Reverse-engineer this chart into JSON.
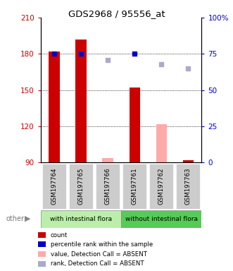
{
  "title": "GDS2968 / 95556_at",
  "samples": [
    "GSM197764",
    "GSM197765",
    "GSM197766",
    "GSM197761",
    "GSM197762",
    "GSM197763"
  ],
  "group1_label": "with intestinal flora",
  "group2_label": "without intestinal flora",
  "group1_color": "#bbeeaa",
  "group2_color": "#55cc55",
  "sample_box_color": "#cccccc",
  "ylim_left": [
    90,
    210
  ],
  "ylim_right": [
    0,
    100
  ],
  "yticks_left": [
    90,
    120,
    150,
    180,
    210
  ],
  "yticks_right": [
    0,
    25,
    50,
    75,
    100
  ],
  "bar_color_present": "#cc0000",
  "bar_color_absent": "#ffaaaa",
  "dot_color_present": "#0000cc",
  "dot_color_absent": "#aaaacc",
  "count_values": [
    182,
    192,
    null,
    152,
    null,
    92
  ],
  "count_absent": [
    null,
    null,
    94,
    null,
    122,
    null
  ],
  "rank_values": [
    75,
    75,
    null,
    75,
    null,
    null
  ],
  "rank_absent": [
    null,
    null,
    71,
    null,
    68,
    65
  ],
  "legend_items": [
    {
      "label": "count",
      "color": "#cc0000"
    },
    {
      "label": "percentile rank within the sample",
      "color": "#0000cc"
    },
    {
      "label": "value, Detection Call = ABSENT",
      "color": "#ffaaaa"
    },
    {
      "label": "rank, Detection Call = ABSENT",
      "color": "#aaaacc"
    }
  ],
  "other_label": "other",
  "bg_color": "#ffffff",
  "tick_label_color_left": "#cc0000",
  "tick_label_color_right": "#0000cc"
}
